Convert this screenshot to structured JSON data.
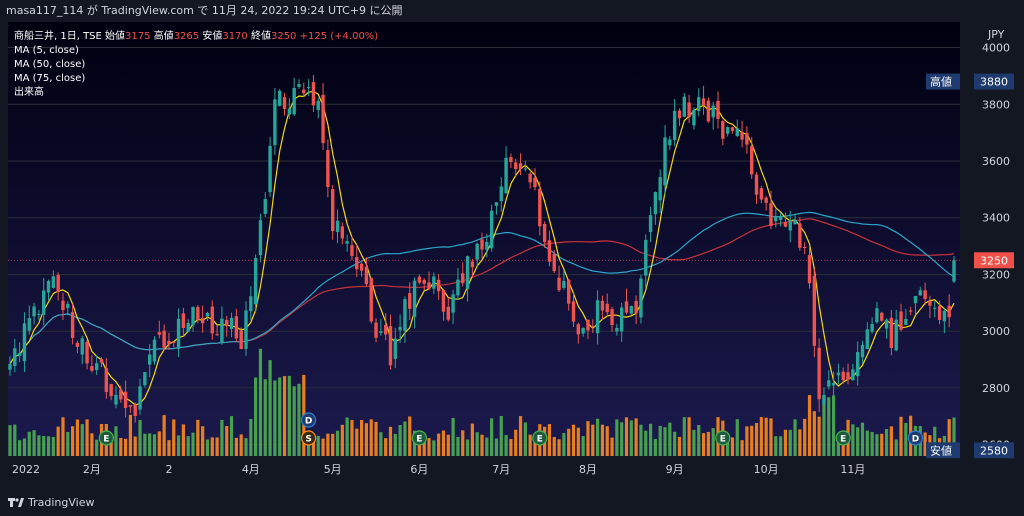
{
  "header": {
    "caption": "masa117_114 が TradingView.com で 11月 24, 2022 19:24 UTC+9 に公開"
  },
  "legend": {
    "symbol": "商船三井, 1日, TSE",
    "open_label": "始値",
    "open_value": "3175",
    "high_label": "高値",
    "high_value": "3265",
    "low_label": "安値",
    "low_value": "3170",
    "close_label": "終値",
    "close_value": "3250",
    "change": "+125 (+4.00%)",
    "ma5": "MA (5, close)",
    "ma50": "MA (50, close)",
    "ma75": "MA (75, close)",
    "volume": "出来高"
  },
  "footer": {
    "logo_text": "TradingView",
    "logo_icon": "tradingview-logo-icon"
  },
  "colors": {
    "background_top": "#000010",
    "background_bottom": "#1c1a4e",
    "up": "#26a69a",
    "down": "#ef5350",
    "volume_up": "#4caf50",
    "volume_down": "#ff8a1c",
    "ma5": "#f5d90a",
    "ma50": "#2aa7c9",
    "ma75": "#c8333a",
    "price_tag": "#f0504a",
    "high_low_tag": "#1e3a6e"
  },
  "chart_data": {
    "type": "candlestick",
    "currency_label": "JPY",
    "ylim": [
      2560,
      4090
    ],
    "y_ticks": [
      "4000",
      "3800",
      "3600",
      "3400",
      "3200",
      "3000",
      "2800",
      "2600"
    ],
    "x_tick_labels": [
      "2022",
      "2月",
      "2",
      "4月",
      "5月",
      "6月",
      "7月",
      "8月",
      "9月",
      "10月",
      "11月"
    ],
    "current_price": "3250",
    "high_label": "高値",
    "high_value": "3880",
    "low_label": "安値",
    "low_value": "2580",
    "markers": [
      {
        "letter": "E",
        "kind": "earnings"
      },
      {
        "letter": "D",
        "kind": "dividend"
      },
      {
        "letter": "S",
        "kind": "split"
      },
      {
        "letter": "E",
        "kind": "earnings"
      },
      {
        "letter": "E",
        "kind": "earnings"
      },
      {
        "letter": "E",
        "kind": "earnings"
      },
      {
        "letter": "D",
        "kind": "dividend"
      },
      {
        "letter": "E",
        "kind": "earnings"
      }
    ],
    "ohlc_anchors": [
      [
        0,
        2900
      ],
      [
        6,
        3100
      ],
      [
        10,
        3170
      ],
      [
        14,
        2960
      ],
      [
        18,
        2880
      ],
      [
        22,
        2750
      ],
      [
        26,
        2720
      ],
      [
        30,
        2980
      ],
      [
        34,
        2980
      ],
      [
        38,
        3060
      ],
      [
        42,
        3030
      ],
      [
        46,
        3030
      ],
      [
        48,
        2950
      ],
      [
        52,
        3350
      ],
      [
        55,
        3820
      ],
      [
        58,
        3830
      ],
      [
        61,
        3830
      ],
      [
        64,
        3830
      ],
      [
        67,
        3390
      ],
      [
        70,
        3350
      ],
      [
        73,
        3200
      ],
      [
        76,
        3000
      ],
      [
        79,
        2920
      ],
      [
        82,
        3100
      ],
      [
        85,
        3160
      ],
      [
        88,
        3170
      ],
      [
        91,
        3080
      ],
      [
        94,
        3200
      ],
      [
        97,
        3300
      ],
      [
        100,
        3380
      ],
      [
        103,
        3600
      ],
      [
        106,
        3580
      ],
      [
        109,
        3520
      ],
      [
        112,
        3200
      ],
      [
        115,
        3150
      ],
      [
        118,
        3000
      ],
      [
        121,
        3060
      ],
      [
        124,
        3080
      ],
      [
        127,
        3040
      ],
      [
        130,
        3080
      ],
      [
        133,
        3400
      ],
      [
        136,
        3650
      ],
      [
        139,
        3780
      ],
      [
        142,
        3800
      ],
      [
        145,
        3770
      ],
      [
        148,
        3720
      ],
      [
        151,
        3720
      ],
      [
        154,
        3560
      ],
      [
        157,
        3420
      ],
      [
        160,
        3380
      ],
      [
        163,
        3350
      ],
      [
        166,
        3200
      ],
      [
        168,
        2760
      ],
      [
        171,
        2800
      ],
      [
        174,
        2840
      ],
      [
        177,
        2950
      ],
      [
        180,
        3050
      ],
      [
        183,
        2980
      ],
      [
        186,
        3050
      ],
      [
        189,
        3120
      ],
      [
        192,
        3080
      ],
      [
        195,
        3050
      ],
      [
        196,
        3250
      ]
    ]
  }
}
